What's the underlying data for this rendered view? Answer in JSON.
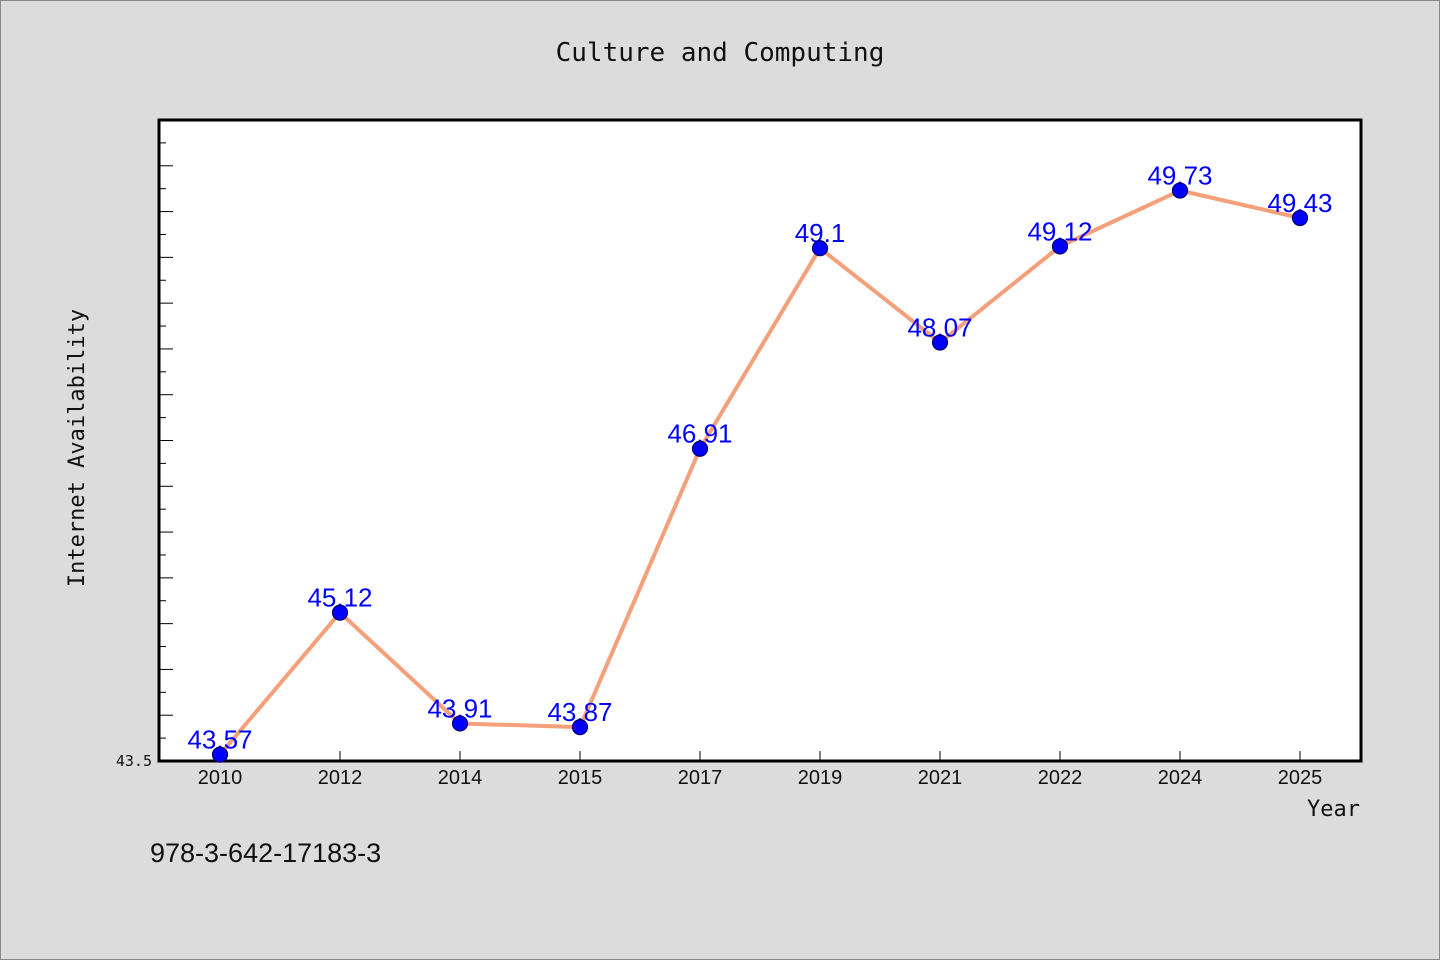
{
  "chart_data": {
    "type": "line",
    "title": "Culture and Computing",
    "xlabel": "Year",
    "ylabel": "Internet Availability",
    "categories": [
      "2010",
      "2012",
      "2014",
      "2015",
      "2017",
      "2019",
      "2021",
      "2022",
      "2024",
      "2025"
    ],
    "series": [
      {
        "values": [
          43.57,
          45.12,
          43.91,
          43.87,
          46.91,
          49.1,
          48.07,
          49.12,
          49.73,
          49.43
        ],
        "data_labels": [
          "43.57",
          "45.12",
          "43.91",
          "43.87",
          "46.91",
          "49.1",
          "48.07",
          "49.12",
          "49.73",
          "49.43"
        ],
        "line_color": "#f4a07a",
        "marker_color": "#0000ff"
      }
    ],
    "y_tick_labels": [
      "43.5"
    ],
    "ylim": [
      43.5,
      50.5
    ],
    "grid": false,
    "legend": "none"
  },
  "footer": {
    "text": "978-3-642-17183-3"
  }
}
